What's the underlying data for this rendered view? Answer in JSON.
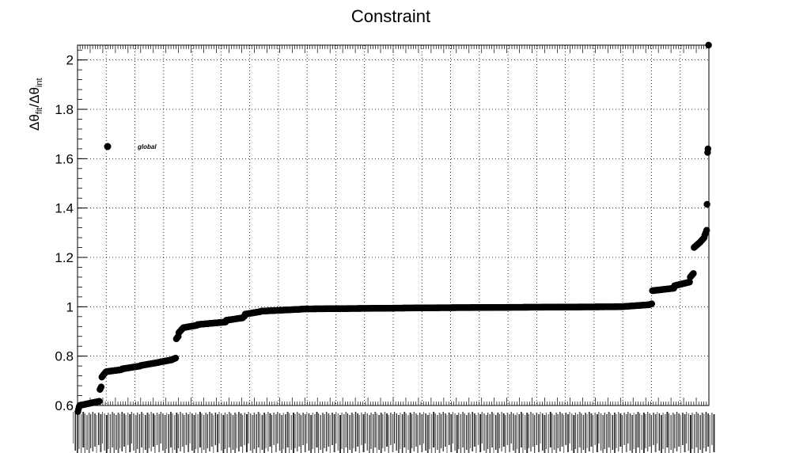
{
  "chart_data": {
    "type": "scatter",
    "title": "Constraint",
    "ylabel": {
      "base": "Δθ",
      "sub1": "fit",
      "sep": "/Δθ",
      "sub2": "int"
    },
    "ylim": [
      0.6,
      2.06
    ],
    "yticks": [
      0.6,
      0.8,
      1,
      1.2,
      1.4,
      1.6,
      1.8,
      2
    ],
    "ytick_labels": [
      "0.6",
      "0.8",
      "1",
      "1.2",
      "1.4",
      "1.6",
      "1.8",
      "2"
    ],
    "xlim": [
      0,
      1000
    ],
    "n_points": 1000,
    "grid": true,
    "legend": {
      "label": "global",
      "placement": "top-left"
    },
    "x_tick_labels_note": "dense overlapping category labels (illegible)",
    "steps": [
      {
        "from": 0,
        "to": 3,
        "y0": 0.575,
        "y1": 0.595
      },
      {
        "from": 3,
        "to": 35,
        "y0": 0.6,
        "y1": 0.617
      },
      {
        "from": 35,
        "to": 38,
        "y0": 0.665,
        "y1": 0.675
      },
      {
        "from": 38,
        "to": 45,
        "y0": 0.715,
        "y1": 0.735
      },
      {
        "from": 45,
        "to": 70,
        "y0": 0.737,
        "y1": 0.745
      },
      {
        "from": 70,
        "to": 100,
        "y0": 0.748,
        "y1": 0.76
      },
      {
        "from": 100,
        "to": 130,
        "y0": 0.762,
        "y1": 0.775
      },
      {
        "from": 130,
        "to": 150,
        "y0": 0.776,
        "y1": 0.785
      },
      {
        "from": 150,
        "to": 156,
        "y0": 0.787,
        "y1": 0.792
      },
      {
        "from": 156,
        "to": 160,
        "y0": 0.87,
        "y1": 0.88
      },
      {
        "from": 160,
        "to": 167,
        "y0": 0.895,
        "y1": 0.912
      },
      {
        "from": 167,
        "to": 190,
        "y0": 0.915,
        "y1": 0.925
      },
      {
        "from": 190,
        "to": 235,
        "y0": 0.928,
        "y1": 0.938
      },
      {
        "from": 235,
        "to": 262,
        "y0": 0.945,
        "y1": 0.955
      },
      {
        "from": 262,
        "to": 265,
        "y0": 0.958,
        "y1": 0.962
      },
      {
        "from": 265,
        "to": 290,
        "y0": 0.97,
        "y1": 0.98
      },
      {
        "from": 290,
        "to": 355,
        "y0": 0.982,
        "y1": 0.99
      },
      {
        "from": 355,
        "to": 575,
        "y0": 0.991,
        "y1": 0.996
      },
      {
        "from": 575,
        "to": 860,
        "y0": 0.996,
        "y1": 1.0
      },
      {
        "from": 860,
        "to": 905,
        "y0": 1.0,
        "y1": 1.008
      },
      {
        "from": 905,
        "to": 910,
        "y0": 1.008,
        "y1": 1.012
      },
      {
        "from": 910,
        "to": 945,
        "y0": 1.065,
        "y1": 1.075
      },
      {
        "from": 945,
        "to": 970,
        "y0": 1.085,
        "y1": 1.1
      },
      {
        "from": 970,
        "to": 976,
        "y0": 1.12,
        "y1": 1.135
      },
      {
        "from": 976,
        "to": 985,
        "y0": 1.24,
        "y1": 1.258
      },
      {
        "from": 985,
        "to": 993,
        "y0": 1.26,
        "y1": 1.28
      },
      {
        "from": 993,
        "to": 997,
        "y0": 1.29,
        "y1": 1.31
      }
    ],
    "extra_points": [
      {
        "x": 997,
        "y": 1.415
      },
      {
        "x": 998,
        "y": 1.625
      },
      {
        "x": 998.5,
        "y": 1.64
      },
      {
        "x": 999.5,
        "y": 2.06
      }
    ]
  }
}
